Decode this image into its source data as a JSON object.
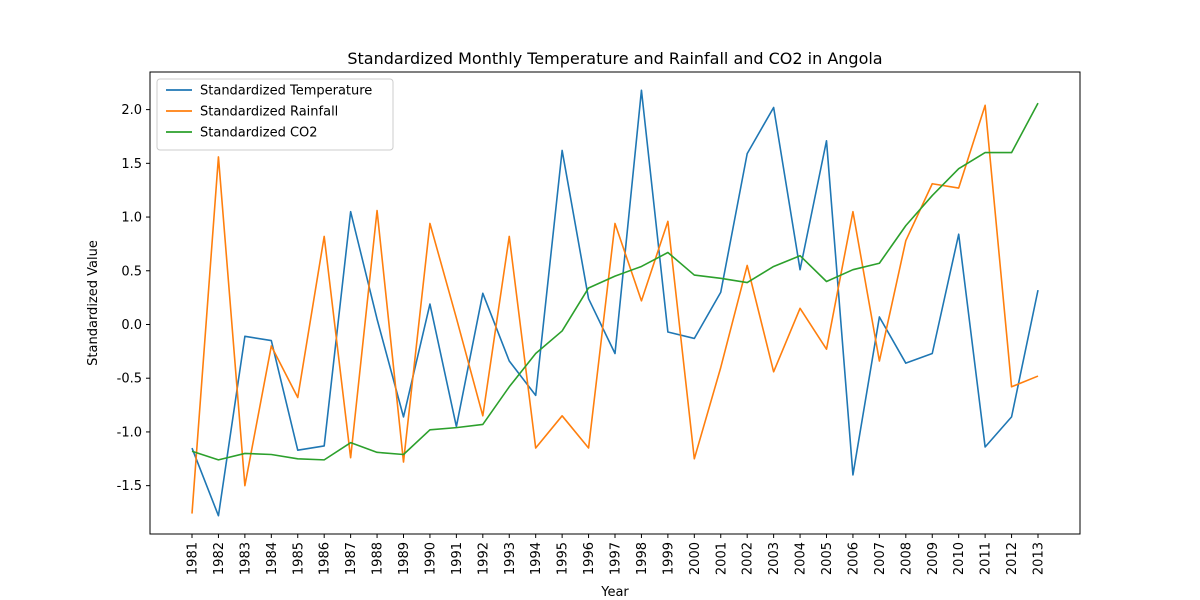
{
  "chart_data": {
    "type": "line",
    "title": "Standardized Monthly Temperature and Rainfall and CO2 in Angola",
    "xlabel": "Year",
    "ylabel": "Standardized Value",
    "x": [
      1981,
      1982,
      1983,
      1984,
      1985,
      1986,
      1987,
      1988,
      1989,
      1990,
      1991,
      1992,
      1993,
      1994,
      1995,
      1996,
      1997,
      1998,
      1999,
      2000,
      2001,
      2002,
      2003,
      2004,
      2005,
      2006,
      2007,
      2008,
      2009,
      2010,
      2011,
      2012,
      2013
    ],
    "ylim": [
      -1.95,
      2.35
    ],
    "yticks": [
      -1.5,
      -1.0,
      -0.5,
      0.0,
      0.5,
      1.0,
      1.5,
      2.0
    ],
    "grid": false,
    "legend_position": "top-left",
    "series": [
      {
        "name": "Standardized Temperature",
        "color": "#1f77b4",
        "values": [
          -1.15,
          -1.78,
          -0.11,
          -0.15,
          -1.17,
          -1.13,
          1.05,
          0.05,
          -0.86,
          0.19,
          -0.95,
          0.29,
          -0.34,
          -0.66,
          1.62,
          0.24,
          -0.27,
          2.18,
          -0.07,
          -0.13,
          0.3,
          1.59,
          2.02,
          0.51,
          1.71,
          -1.4,
          0.07,
          -0.36,
          -0.27,
          0.84,
          -1.14,
          -0.86,
          0.32
        ]
      },
      {
        "name": "Standardized Rainfall",
        "color": "#ff7f0e",
        "values": [
          -1.76,
          1.56,
          -1.5,
          -0.2,
          -0.68,
          0.82,
          -1.24,
          1.06,
          -1.28,
          0.94,
          0.06,
          -0.85,
          0.82,
          -1.15,
          -0.85,
          -1.15,
          0.94,
          0.22,
          0.96,
          -1.25,
          -0.4,
          0.55,
          -0.44,
          0.15,
          -0.23,
          1.05,
          -0.34,
          0.78,
          1.31,
          1.27,
          2.04,
          -0.58,
          -0.48
        ]
      },
      {
        "name": "Standardized CO2",
        "color": "#2ca02c",
        "values": [
          -1.18,
          -1.26,
          -1.2,
          -1.21,
          -1.25,
          -1.26,
          -1.1,
          -1.19,
          -1.21,
          -0.98,
          -0.96,
          -0.93,
          -0.58,
          -0.27,
          -0.06,
          0.34,
          0.45,
          0.54,
          0.67,
          0.46,
          0.43,
          0.39,
          0.54,
          0.64,
          0.4,
          0.51,
          0.57,
          0.92,
          1.2,
          1.45,
          1.6,
          1.6,
          2.06
        ]
      }
    ]
  }
}
